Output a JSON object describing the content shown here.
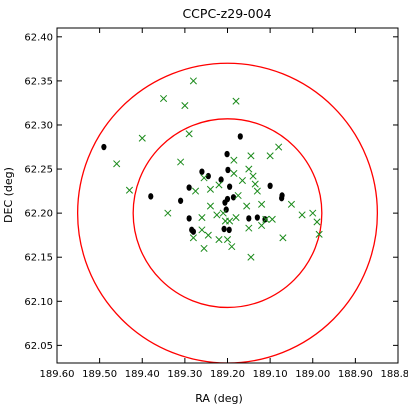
{
  "chart_data": {
    "type": "scatter",
    "title": "CCPC-z29-004",
    "xlabel": "RA (deg)",
    "ylabel": "DEC (deg)",
    "xlim": [
      189.6,
      188.8
    ],
    "ylim": [
      62.03,
      62.41
    ],
    "x_inverted": true,
    "xticks": [
      189.6,
      189.5,
      189.4,
      189.3,
      189.2,
      189.1,
      189.0,
      188.9,
      188.8
    ],
    "xtick_labels": [
      "189.60",
      "189.50",
      "189.40",
      "189.30",
      "189.20",
      "189.10",
      "189.00",
      "188.90",
      "188.80"
    ],
    "yticks": [
      62.05,
      62.1,
      62.15,
      62.2,
      62.25,
      62.3,
      62.35,
      62.4
    ],
    "ytick_labels": [
      "62.05",
      "62.10",
      "62.15",
      "62.20",
      "62.25",
      "62.30",
      "62.35",
      "62.40"
    ],
    "grid": false,
    "circles": [
      {
        "center_ra": 189.2,
        "center_dec": 62.2,
        "radius_deg": 0.107,
        "color": "#ff0000"
      },
      {
        "center_ra": 189.2,
        "center_dec": 62.2,
        "radius_deg": 0.17,
        "color": "#ff0000"
      }
    ],
    "series": [
      {
        "marker": "circle",
        "color": "#000000",
        "points": [
          [
            189.49,
            62.275
          ],
          [
            189.38,
            62.219
          ],
          [
            189.29,
            62.229
          ],
          [
            189.26,
            62.247
          ],
          [
            189.245,
            62.242
          ],
          [
            189.31,
            62.214
          ],
          [
            189.215,
            62.238
          ],
          [
            189.201,
            62.267
          ],
          [
            189.199,
            62.249
          ],
          [
            189.17,
            62.287
          ],
          [
            189.195,
            62.23
          ],
          [
            189.2,
            62.216
          ],
          [
            189.206,
            62.212
          ],
          [
            189.186,
            62.218
          ],
          [
            189.203,
            62.204
          ],
          [
            189.29,
            62.194
          ],
          [
            189.28,
            62.179
          ],
          [
            189.284,
            62.181
          ],
          [
            189.208,
            62.182
          ],
          [
            189.196,
            62.181
          ],
          [
            189.15,
            62.194
          ],
          [
            189.13,
            62.195
          ],
          [
            189.112,
            62.193
          ],
          [
            189.1,
            62.231
          ],
          [
            189.072,
            62.22
          ],
          [
            189.073,
            62.217
          ]
        ]
      },
      {
        "marker": "x",
        "color": "#1a8a1a",
        "points": [
          [
            189.28,
            62.35
          ],
          [
            189.35,
            62.33
          ],
          [
            189.3,
            62.322
          ],
          [
            189.18,
            62.327
          ],
          [
            189.4,
            62.285
          ],
          [
            189.29,
            62.29
          ],
          [
            189.46,
            62.256
          ],
          [
            189.43,
            62.226
          ],
          [
            189.34,
            62.2
          ],
          [
            189.31,
            62.258
          ],
          [
            189.275,
            62.225
          ],
          [
            189.255,
            62.24
          ],
          [
            189.24,
            62.227
          ],
          [
            189.22,
            62.232
          ],
          [
            189.185,
            62.245
          ],
          [
            189.185,
            62.26
          ],
          [
            189.15,
            62.25
          ],
          [
            189.145,
            62.265
          ],
          [
            189.135,
            62.233
          ],
          [
            189.12,
            62.21
          ],
          [
            189.1,
            62.265
          ],
          [
            189.08,
            62.275
          ],
          [
            189.05,
            62.21
          ],
          [
            189.095,
            62.193
          ],
          [
            189.11,
            62.193
          ],
          [
            189.26,
            62.195
          ],
          [
            189.24,
            62.208
          ],
          [
            189.225,
            62.198
          ],
          [
            189.21,
            62.2
          ],
          [
            189.205,
            62.191
          ],
          [
            189.195,
            62.191
          ],
          [
            189.18,
            62.195
          ],
          [
            189.15,
            62.183
          ],
          [
            189.12,
            62.186
          ],
          [
            189.28,
            62.172
          ],
          [
            189.26,
            62.181
          ],
          [
            189.245,
            62.175
          ],
          [
            189.22,
            62.17
          ],
          [
            189.2,
            62.17
          ],
          [
            189.255,
            62.16
          ],
          [
            189.19,
            62.162
          ],
          [
            189.145,
            62.15
          ],
          [
            189.07,
            62.172
          ],
          [
            189.025,
            62.198
          ],
          [
            189.0,
            62.2
          ],
          [
            188.99,
            62.19
          ],
          [
            188.985,
            62.176
          ],
          [
            189.175,
            62.22
          ],
          [
            189.165,
            62.237
          ],
          [
            189.14,
            62.242
          ],
          [
            189.13,
            62.225
          ],
          [
            189.155,
            62.208
          ]
        ]
      }
    ]
  }
}
